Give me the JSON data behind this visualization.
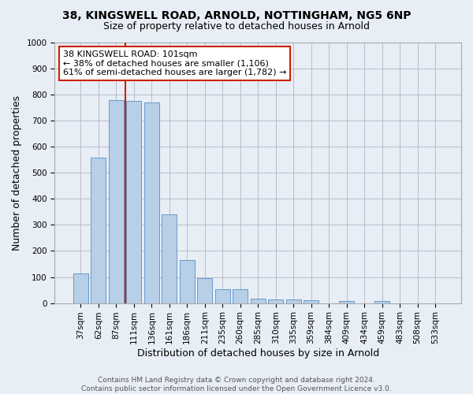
{
  "title": "38, KINGSWELL ROAD, ARNOLD, NOTTINGHAM, NG5 6NP",
  "subtitle": "Size of property relative to detached houses in Arnold",
  "xlabel": "Distribution of detached houses by size in Arnold",
  "ylabel": "Number of detached properties",
  "categories": [
    "37sqm",
    "62sqm",
    "87sqm",
    "111sqm",
    "136sqm",
    "161sqm",
    "186sqm",
    "211sqm",
    "235sqm",
    "260sqm",
    "285sqm",
    "310sqm",
    "335sqm",
    "359sqm",
    "384sqm",
    "409sqm",
    "434sqm",
    "459sqm",
    "483sqm",
    "508sqm",
    "533sqm"
  ],
  "bar_values": [
    113,
    557,
    779,
    775,
    770,
    342,
    165,
    97,
    53,
    53,
    18,
    14,
    14,
    11,
    0,
    8,
    0,
    8,
    0,
    0,
    0
  ],
  "bar_color": "#b8cfe8",
  "bar_edge_color": "#6699cc",
  "grid_color": "#bbbbcc",
  "bg_color": "#e8eef5",
  "vline_color": "#cc2200",
  "annotation_text": "38 KINGSWELL ROAD: 101sqm\n← 38% of detached houses are smaller (1,106)\n61% of semi-detached houses are larger (1,782) →",
  "annotation_box_facecolor": "#ffffff",
  "annotation_box_edge": "#cc2200",
  "footer_text": "Contains HM Land Registry data © Crown copyright and database right 2024.\nContains public sector information licensed under the Open Government Licence v3.0.",
  "ylim": [
    0,
    1000
  ],
  "yticks": [
    0,
    100,
    200,
    300,
    400,
    500,
    600,
    700,
    800,
    900,
    1000
  ],
  "title_fontsize": 10,
  "subtitle_fontsize": 9,
  "ylabel_fontsize": 9,
  "xlabel_fontsize": 9,
  "tick_fontsize": 7.5,
  "annotation_fontsize": 8,
  "footer_fontsize": 6.5
}
